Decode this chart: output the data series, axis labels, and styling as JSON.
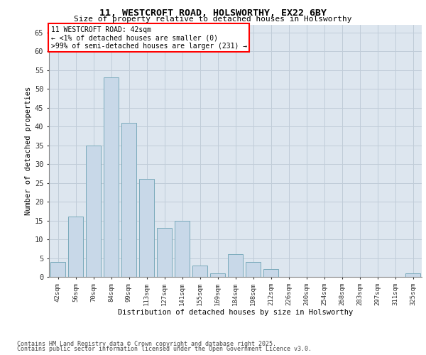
{
  "title_line1": "11, WESTCROFT ROAD, HOLSWORTHY, EX22 6BY",
  "title_line2": "Size of property relative to detached houses in Holsworthy",
  "xlabel": "Distribution of detached houses by size in Holsworthy",
  "ylabel": "Number of detached properties",
  "categories": [
    "42sqm",
    "56sqm",
    "70sqm",
    "84sqm",
    "99sqm",
    "113sqm",
    "127sqm",
    "141sqm",
    "155sqm",
    "169sqm",
    "184sqm",
    "198sqm",
    "212sqm",
    "226sqm",
    "240sqm",
    "254sqm",
    "268sqm",
    "283sqm",
    "297sqm",
    "311sqm",
    "325sqm"
  ],
  "values": [
    4,
    16,
    35,
    53,
    41,
    26,
    13,
    15,
    3,
    1,
    6,
    4,
    2,
    0,
    0,
    0,
    0,
    0,
    0,
    0,
    1
  ],
  "bar_color": "#c8d8e8",
  "bar_edge_color": "#7aaabb",
  "annotation_text": "11 WESTCROFT ROAD: 42sqm\n← <1% of detached houses are smaller (0)\n>99% of semi-detached houses are larger (231) →",
  "ylim": [
    0,
    67
  ],
  "yticks": [
    0,
    5,
    10,
    15,
    20,
    25,
    30,
    35,
    40,
    45,
    50,
    55,
    60,
    65
  ],
  "grid_color": "#c0ccd8",
  "background_color": "#dde6ef",
  "footer_line1": "Contains HM Land Registry data © Crown copyright and database right 2025.",
  "footer_line2": "Contains public sector information licensed under the Open Government Licence v3.0."
}
